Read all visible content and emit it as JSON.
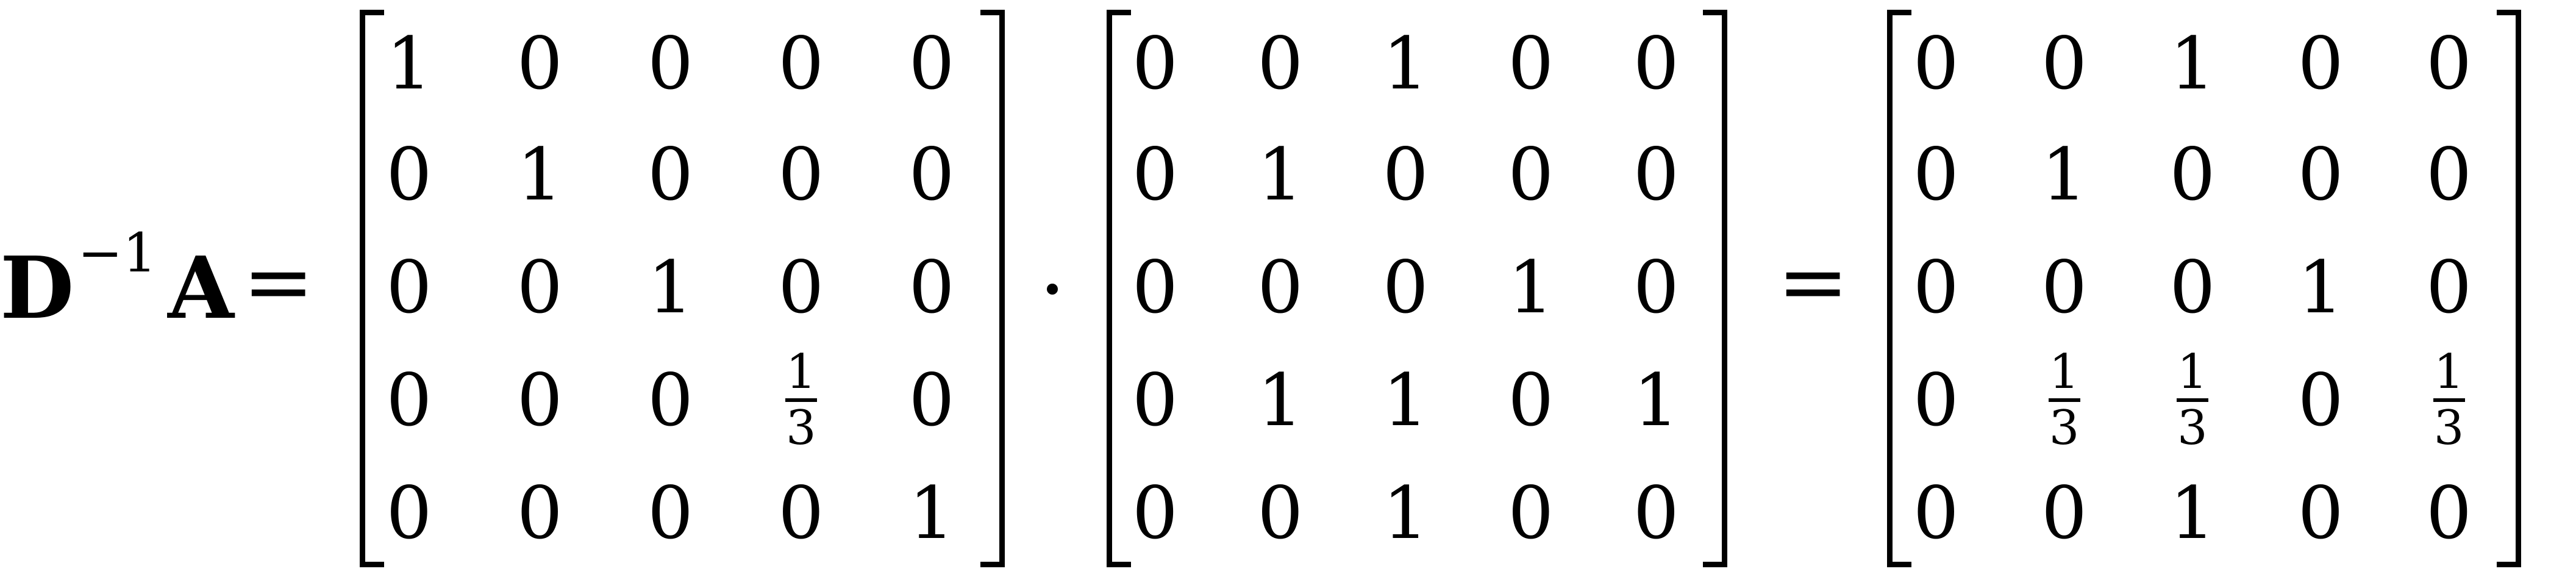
{
  "lhs": {
    "matrix_d": "D",
    "exponent": "−1",
    "matrix_a": "A"
  },
  "operators": {
    "equals_1": "=",
    "equals_2": "="
  },
  "matrices": [
    {
      "rows": [
        [
          "1",
          "0",
          "0",
          "0",
          "0"
        ],
        [
          "0",
          "1",
          "0",
          "0",
          "0"
        ],
        [
          "0",
          "0",
          "1",
          "0",
          "0"
        ],
        [
          "0",
          "0",
          "0",
          "1/3",
          "0"
        ],
        [
          "0",
          "0",
          "0",
          "0",
          "1"
        ]
      ]
    },
    {
      "rows": [
        [
          "0",
          "0",
          "1",
          "0",
          "0"
        ],
        [
          "0",
          "1",
          "0",
          "0",
          "0"
        ],
        [
          "0",
          "0",
          "0",
          "1",
          "0"
        ],
        [
          "0",
          "1",
          "1",
          "0",
          "1"
        ],
        [
          "0",
          "0",
          "1",
          "0",
          "0"
        ]
      ]
    },
    {
      "rows": [
        [
          "0",
          "0",
          "1",
          "0",
          "0"
        ],
        [
          "0",
          "1",
          "0",
          "0",
          "0"
        ],
        [
          "0",
          "0",
          "0",
          "1",
          "0"
        ],
        [
          "0",
          "1/3",
          "1/3",
          "0",
          "1/3"
        ],
        [
          "0",
          "0",
          "1",
          "0",
          "0"
        ]
      ]
    }
  ]
}
